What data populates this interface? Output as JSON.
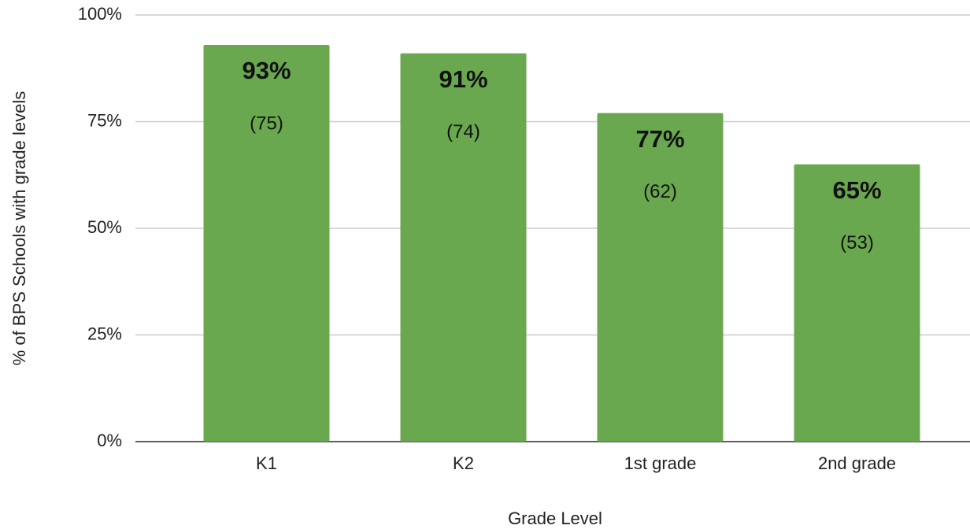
{
  "chart_data": {
    "type": "bar",
    "x_label": "Grade Level",
    "y_label": "% of BPS Schools with grade levels",
    "categories": [
      "K1",
      "K2",
      "1st grade",
      "2nd grade"
    ],
    "values": [
      93,
      91,
      77,
      65
    ],
    "value_labels": [
      "93%",
      "91%",
      "77%",
      "65%"
    ],
    "count_labels": [
      "(75)",
      "(74)",
      "(62)",
      "(53)"
    ],
    "color": "#6aa84f",
    "ylim": [
      0,
      100
    ],
    "yticks": [
      {
        "value": 0,
        "label": "0%"
      },
      {
        "value": 25,
        "label": "25%"
      },
      {
        "value": 50,
        "label": "50%"
      },
      {
        "value": 75,
        "label": "75%"
      },
      {
        "value": 100,
        "label": "100%"
      }
    ],
    "grid": true
  }
}
